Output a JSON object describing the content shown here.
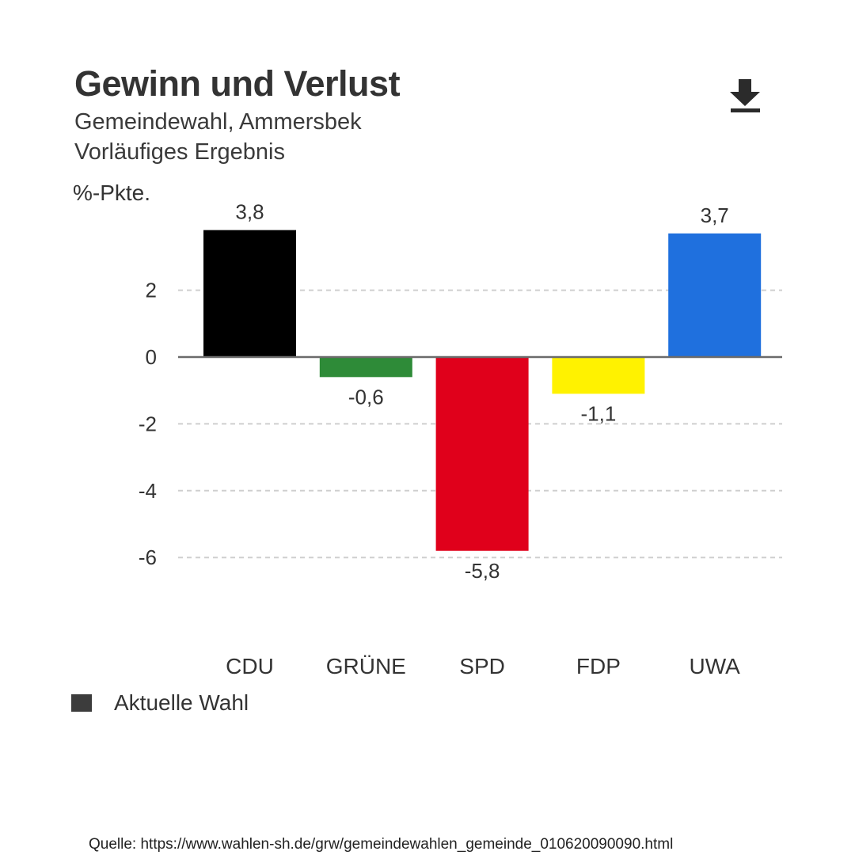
{
  "header": {
    "title": "Gewinn und Verlust",
    "subtitle_line1": "Gemeindewahl, Ammersbek",
    "subtitle_line2": "Vorläufiges Ergebnis",
    "download_icon": "download-icon"
  },
  "source": "Quelle: https://www.wahlen-sh.de/grw/gemeindewahlen_gemeinde_010620090090.html",
  "chart_data": {
    "type": "bar",
    "title": "Gewinn und Verlust",
    "subtitle": "Gemeindewahl, Ammersbek – Vorläufiges Ergebnis",
    "ylabel": "%-Pkte.",
    "xlabel": "",
    "categories": [
      "CDU",
      "GRÜNE",
      "SPD",
      "FDP",
      "UWA"
    ],
    "series": [
      {
        "name": "Aktuelle Wahl",
        "values": [
          3.8,
          -0.6,
          -5.8,
          -1.1,
          3.7
        ],
        "labels": [
          "3,8",
          "-0,6",
          "-5,8",
          "-1,1",
          "3,7"
        ],
        "colors": [
          "#000000",
          "#2e8b38",
          "#e0001b",
          "#fff200",
          "#1f70de"
        ]
      }
    ],
    "ylim": [
      -6.5,
      4.2
    ],
    "yticks": [
      2,
      0,
      -2,
      -4,
      -6
    ],
    "ytick_labels": [
      "2",
      "0",
      "-2",
      "-4",
      "-6"
    ],
    "grid": true,
    "grid_style": "dashed",
    "legend": {
      "position": "bottom-left",
      "entries": [
        "Aktuelle Wahl"
      ],
      "swatch_color": "#3c3c3c"
    }
  }
}
